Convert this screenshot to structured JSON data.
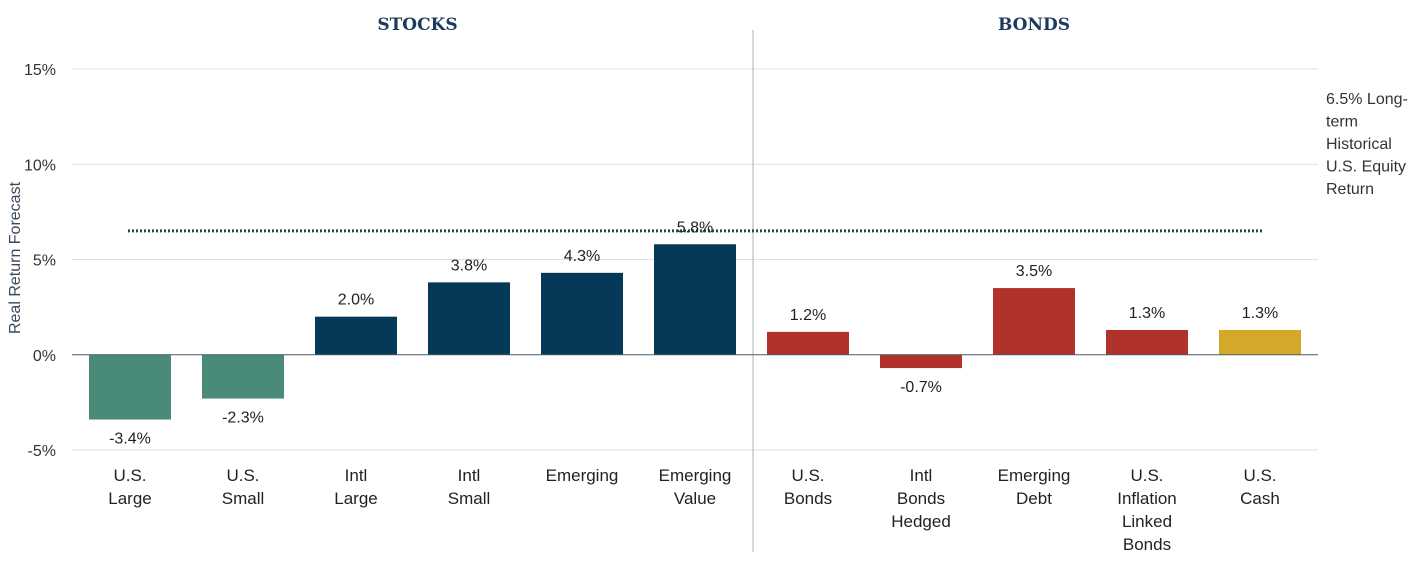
{
  "chart_data": {
    "type": "bar",
    "ylabel": "Real Return Forecast",
    "ylim": [
      -5,
      15
    ],
    "yticks": [
      -5,
      0,
      5,
      10,
      15
    ],
    "ytick_labels": [
      "-5%",
      "0%",
      "5%",
      "10%",
      "15%"
    ],
    "grid": true,
    "sections": [
      {
        "label": "STOCKS",
        "categories": [
          0,
          5
        ]
      },
      {
        "label": "BONDS",
        "categories": [
          6,
          10
        ]
      }
    ],
    "categories": [
      [
        "U.S.",
        "Large"
      ],
      [
        "U.S.",
        "Small"
      ],
      [
        "Intl",
        "Large"
      ],
      [
        "Intl",
        "Small"
      ],
      [
        "Emerging"
      ],
      [
        "Emerging",
        "Value"
      ],
      [
        "U.S.",
        "Bonds"
      ],
      [
        "Intl",
        "Bonds",
        "Hedged"
      ],
      [
        "Emerging",
        "Debt"
      ],
      [
        "U.S.",
        "Inflation",
        "Linked",
        "Bonds"
      ],
      [
        "U.S.",
        "Cash"
      ]
    ],
    "values": [
      -3.4,
      -2.3,
      2.0,
      3.8,
      4.3,
      5.8,
      1.2,
      -0.7,
      3.5,
      1.3,
      1.3
    ],
    "value_labels": [
      "-3.4%",
      "-2.3%",
      "2.0%",
      "3.8%",
      "4.3%",
      "5.8%",
      "1.2%",
      "-0.7%",
      "3.5%",
      "1.3%",
      "1.3%"
    ],
    "colors": [
      "#4a8a78",
      "#4a8a78",
      "#053957",
      "#053957",
      "#053957",
      "#053957",
      "#b0322b",
      "#b0322b",
      "#b0322b",
      "#b0322b",
      "#d4a829"
    ],
    "reference_line": {
      "value": 6.5,
      "style": "dotted",
      "color": "#1e4a4a",
      "label": [
        "6.5% Long-",
        "term",
        "Historical",
        "U.S. Equity",
        "Return"
      ]
    }
  }
}
